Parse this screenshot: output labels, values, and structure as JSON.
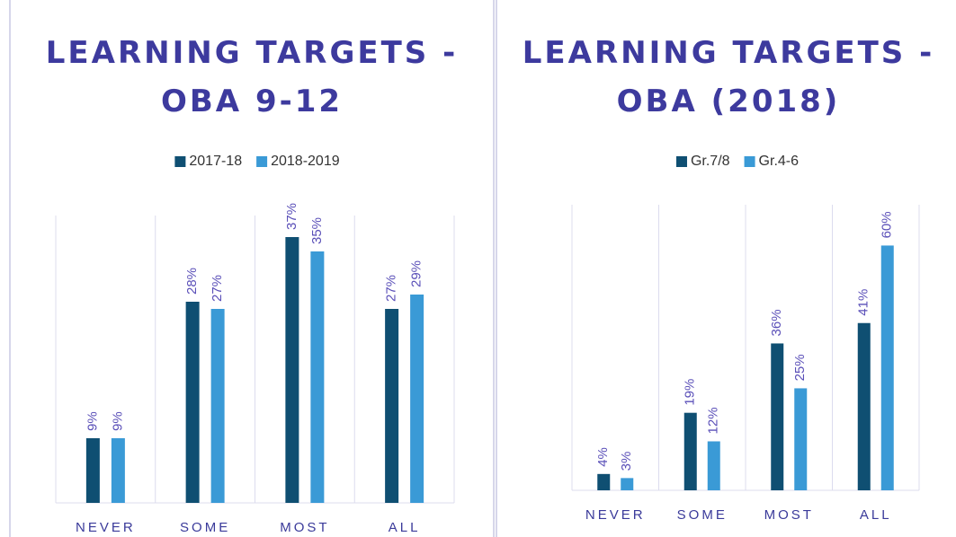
{
  "chart_data": [
    {
      "type": "bar",
      "title": "LEARNING TARGETS - OBA 9-12",
      "categories": [
        "NEVER",
        "SOME",
        "MOST",
        "ALL"
      ],
      "series": [
        {
          "name": "2017-18",
          "color": "#0f4f72",
          "values": [
            9,
            28,
            37,
            27
          ],
          "value_labels": [
            "9%",
            "28%",
            "37%",
            "27%"
          ]
        },
        {
          "name": "2018-2019",
          "color": "#3a9ad6",
          "values": [
            9,
            27,
            35,
            29
          ],
          "value_labels": [
            "9%",
            "27%",
            "35%",
            "29%"
          ]
        }
      ],
      "ylim": [
        0,
        40
      ]
    },
    {
      "type": "bar",
      "title": "LEARNING TARGETS - OBA (2018)",
      "categories": [
        "NEVER",
        "SOME",
        "MOST",
        "ALL"
      ],
      "series": [
        {
          "name": "Gr.7/8",
          "color": "#0f4f72",
          "values": [
            4,
            19,
            36,
            41
          ],
          "value_labels": [
            "4%",
            "19%",
            "36%",
            "41%"
          ]
        },
        {
          "name": "Gr.4-6",
          "color": "#3a9ad6",
          "values": [
            3,
            12,
            25,
            60
          ],
          "value_labels": [
            "3%",
            "12%",
            "25%",
            "60%"
          ]
        }
      ],
      "ylim": [
        0,
        70
      ]
    }
  ]
}
